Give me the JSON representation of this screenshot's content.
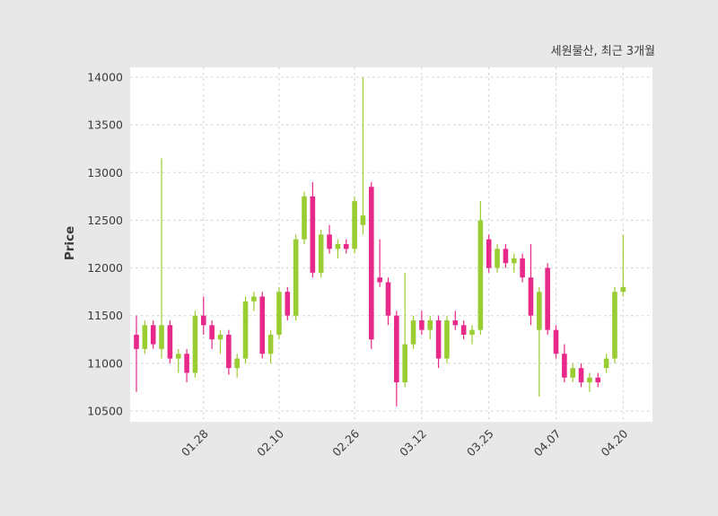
{
  "header": {
    "title": "세원물산, 최근 3개월"
  },
  "chart_data": {
    "type": "candlestick",
    "title": "세원물산, 최근 3개월",
    "ylabel": "Price",
    "xlabel": "",
    "ylim": [
      10500,
      14000
    ],
    "yticks": [
      10500,
      11000,
      11500,
      12000,
      12500,
      13000,
      13500,
      14000
    ],
    "xticks": [
      {
        "i": 8,
        "label": "01.28"
      },
      {
        "i": 17,
        "label": "02.10"
      },
      {
        "i": 26,
        "label": "02.26"
      },
      {
        "i": 34,
        "label": "03.12"
      },
      {
        "i": 42,
        "label": "03.25"
      },
      {
        "i": 50,
        "label": "04.07"
      },
      {
        "i": 58,
        "label": "04.20"
      }
    ],
    "grid": "dashed",
    "legend": "none",
    "up_color": "#9acd32",
    "down_color": "#e7298a",
    "plot_bg": "#ffffff",
    "figure_bg": "#e8e8e8",
    "grid_color": "#cfcfcf",
    "candles_format": [
      "open",
      "high",
      "low",
      "close"
    ],
    "candles": [
      [
        11300,
        11500,
        10700,
        11150
      ],
      [
        11150,
        11450,
        11100,
        11400
      ],
      [
        11400,
        11450,
        11150,
        11200
      ],
      [
        11150,
        13150,
        11050,
        11400
      ],
      [
        11400,
        11450,
        11000,
        11050
      ],
      [
        11050,
        11150,
        10900,
        11100
      ],
      [
        11100,
        11150,
        10800,
        10900
      ],
      [
        10900,
        11550,
        10850,
        11500
      ],
      [
        11500,
        11700,
        11300,
        11400
      ],
      [
        11400,
        11450,
        11150,
        11250
      ],
      [
        11250,
        11350,
        11100,
        11300
      ],
      [
        11300,
        11350,
        10880,
        10950
      ],
      [
        10950,
        11100,
        10850,
        11050
      ],
      [
        11050,
        11700,
        11000,
        11650
      ],
      [
        11650,
        11750,
        11550,
        11700
      ],
      [
        11700,
        11750,
        11050,
        11100
      ],
      [
        11100,
        11350,
        11000,
        11300
      ],
      [
        11300,
        11800,
        11250,
        11750
      ],
      [
        11750,
        11800,
        11450,
        11500
      ],
      [
        11500,
        12350,
        11450,
        12300
      ],
      [
        12300,
        12800,
        12250,
        12750
      ],
      [
        12750,
        12900,
        11900,
        11950
      ],
      [
        11950,
        12400,
        11900,
        12350
      ],
      [
        12350,
        12450,
        12150,
        12200
      ],
      [
        12200,
        12300,
        12100,
        12250
      ],
      [
        12250,
        12300,
        12150,
        12200
      ],
      [
        12200,
        12750,
        12150,
        12700
      ],
      [
        12450,
        14000,
        12350,
        12550
      ],
      [
        12850,
        12900,
        11150,
        11250
      ],
      [
        11900,
        12300,
        11800,
        11850
      ],
      [
        11850,
        11900,
        11400,
        11500
      ],
      [
        11500,
        11550,
        10550,
        10800
      ],
      [
        10800,
        11950,
        10750,
        11200
      ],
      [
        11200,
        11500,
        11150,
        11450
      ],
      [
        11450,
        11550,
        11300,
        11350
      ],
      [
        11350,
        11500,
        11250,
        11450
      ],
      [
        11450,
        11500,
        10950,
        11050
      ],
      [
        11050,
        11500,
        11000,
        11450
      ],
      [
        11450,
        11550,
        11350,
        11400
      ],
      [
        11400,
        11450,
        11250,
        11300
      ],
      [
        11300,
        11400,
        11200,
        11350
      ],
      [
        11350,
        12700,
        11300,
        12500
      ],
      [
        12300,
        12350,
        11950,
        12000
      ],
      [
        12000,
        12250,
        11950,
        12200
      ],
      [
        12200,
        12250,
        12000,
        12050
      ],
      [
        12050,
        12150,
        11950,
        12100
      ],
      [
        12100,
        12150,
        11850,
        11900
      ],
      [
        11900,
        12250,
        11400,
        11500
      ],
      [
        11350,
        11800,
        10650,
        11750
      ],
      [
        12000,
        12050,
        11300,
        11350
      ],
      [
        11350,
        11400,
        11050,
        11100
      ],
      [
        11100,
        11200,
        10800,
        10850
      ],
      [
        10850,
        11000,
        10800,
        10950
      ],
      [
        10950,
        11000,
        10750,
        10800
      ],
      [
        10800,
        10900,
        10700,
        10850
      ],
      [
        10850,
        10900,
        10750,
        10800
      ],
      [
        10950,
        11100,
        10900,
        11050
      ],
      [
        11050,
        11800,
        11000,
        11750
      ],
      [
        11750,
        12350,
        11700,
        11800
      ]
    ]
  }
}
